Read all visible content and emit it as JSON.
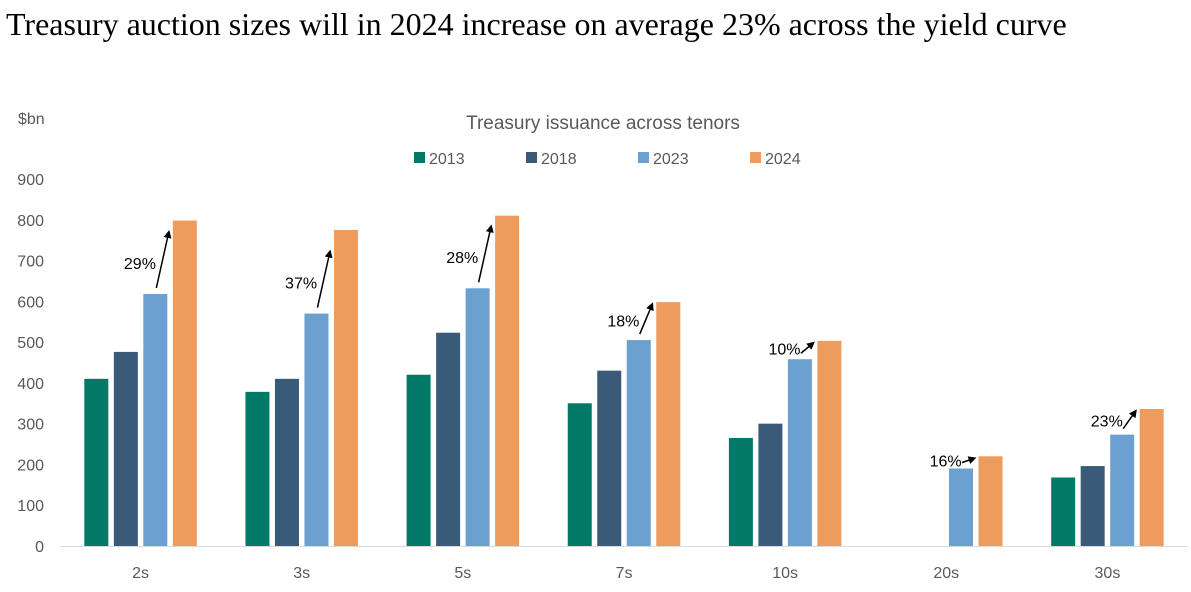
{
  "headline": "Treasury auction sizes will in 2024 increase on average 23% across the yield curve",
  "chart_data": {
    "type": "bar",
    "title": "Treasury issuance across tenors",
    "unit_label": "$bn",
    "xlabel": "",
    "ylabel": "",
    "ylim": [
      0,
      900
    ],
    "yticks": [
      0,
      100,
      200,
      300,
      400,
      500,
      600,
      700,
      800,
      900
    ],
    "grid": false,
    "legend": "top-center",
    "categories": [
      "2s",
      "3s",
      "5s",
      "7s",
      "10s",
      "20s",
      "30s"
    ],
    "series": [
      {
        "name": "2013",
        "color": "#007A66",
        "values": [
          410,
          378,
          420,
          350,
          265,
          null,
          168
        ]
      },
      {
        "name": "2018",
        "color": "#3A5A7A",
        "values": [
          476,
          410,
          523,
          430,
          300,
          null,
          196
        ]
      },
      {
        "name": "2023",
        "color": "#6CA0D0",
        "values": [
          618,
          570,
          632,
          505,
          458,
          190,
          273
        ]
      },
      {
        "name": "2024",
        "color": "#EE9C5E",
        "values": [
          798,
          775,
          810,
          598,
          503,
          220,
          336
        ]
      }
    ],
    "annotations": [
      {
        "category": "2s",
        "label": "29%"
      },
      {
        "category": "3s",
        "label": "37%"
      },
      {
        "category": "5s",
        "label": "28%"
      },
      {
        "category": "7s",
        "label": "18%"
      },
      {
        "category": "10s",
        "label": "10%"
      },
      {
        "category": "20s",
        "label": "16%"
      },
      {
        "category": "30s",
        "label": "23%"
      }
    ]
  }
}
